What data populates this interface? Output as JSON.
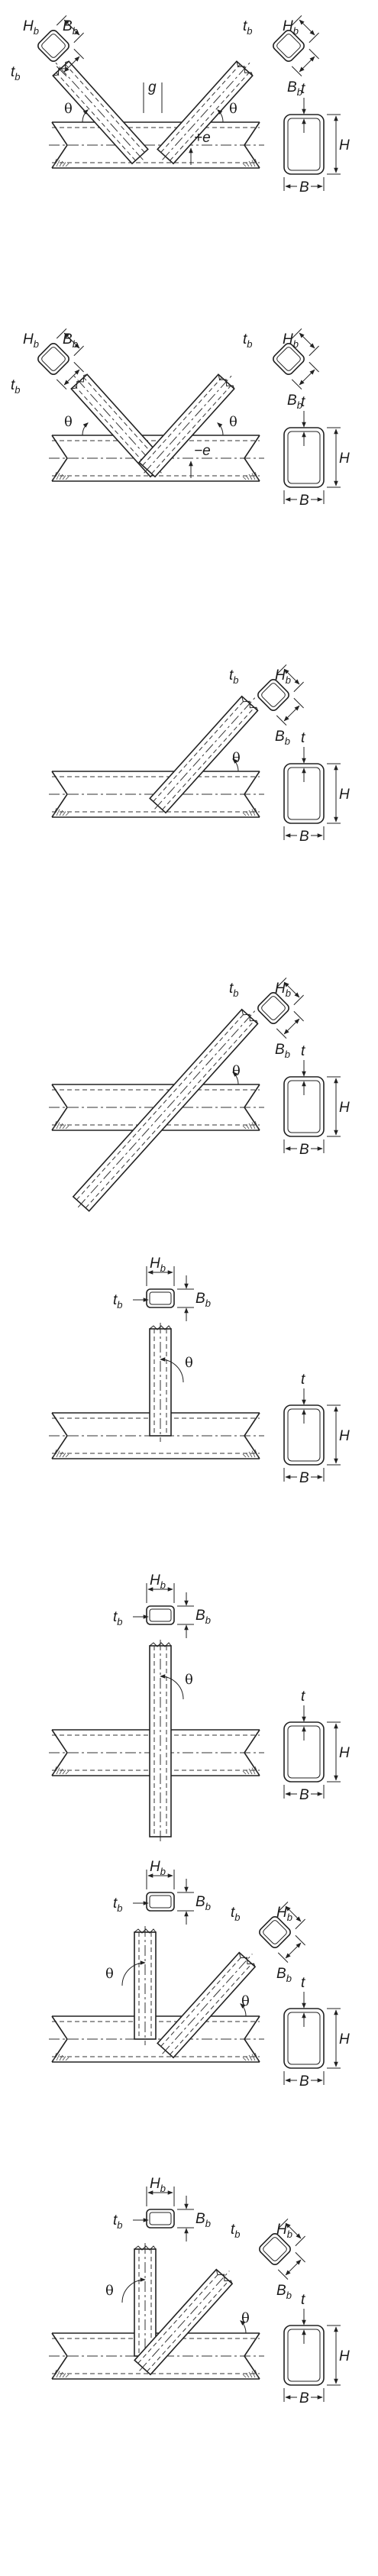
{
  "labels": {
    "t": "t",
    "H": "H",
    "B": "B",
    "tb": "t",
    "tb_sub": "b",
    "Hb": "H",
    "Hb_sub": "b",
    "Bb": "B",
    "Bb_sub": "b",
    "theta": "θ",
    "g": "g",
    "plus_e": "+e",
    "minus_e": "−e"
  },
  "panels": [
    {
      "id": "k-gap",
      "type": "double-inclined",
      "overlap": false,
      "ecc": "plus_e",
      "gap_label": true
    },
    {
      "id": "k-overlap",
      "type": "double-inclined",
      "overlap": true,
      "ecc": "minus_e",
      "gap_label": false
    },
    {
      "id": "y",
      "type": "single-inclined"
    },
    {
      "id": "x-inclined",
      "type": "cross-inclined"
    },
    {
      "id": "t",
      "type": "vertical"
    },
    {
      "id": "x-vertical",
      "type": "cross-vertical"
    },
    {
      "id": "n-1",
      "type": "vertical-plus-inclined"
    },
    {
      "id": "n-2",
      "type": "vertical-plus-inclined-overlap"
    }
  ]
}
